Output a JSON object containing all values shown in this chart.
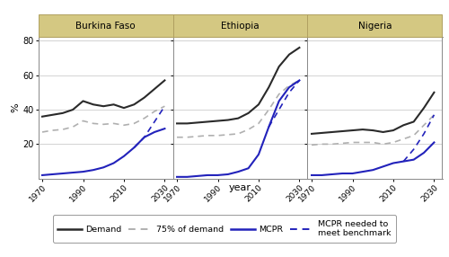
{
  "countries": [
    "Burkina Faso",
    "Ethiopia",
    "Nigeria"
  ],
  "ylabel": "%",
  "xlabel": "year",
  "ylim": [
    0,
    82
  ],
  "yticks": [
    20,
    40,
    60,
    80
  ],
  "xticks": [
    1970,
    1990,
    2010,
    2030
  ],
  "panel_bg": "#ffffff",
  "header_bg": "#d4c882",
  "header_edge": "#b0a060",
  "grid_color": "#cccccc",
  "demand_color": "#2a2a2a",
  "demand75_color": "#b0b0b0",
  "mcpr_color": "#2222bb",
  "mcpr_needed_color": "#2222bb",
  "burkina_faso": {
    "demand_years": [
      1970,
      1975,
      1980,
      1985,
      1990,
      1995,
      2000,
      2005,
      2010,
      2015,
      2020,
      2025,
      2030
    ],
    "demand": [
      36,
      37,
      38,
      40,
      45,
      43,
      42,
      43,
      41,
      43,
      47,
      52,
      57
    ],
    "demand75": [
      27,
      28,
      28.5,
      30,
      33.5,
      32,
      31.5,
      32,
      31,
      32,
      35,
      39,
      42
    ],
    "mcpr_years": [
      1970,
      1975,
      1980,
      1985,
      1990,
      1995,
      2000,
      2005,
      2010,
      2015,
      2020,
      2025,
      2030
    ],
    "mcpr": [
      2,
      2.5,
      3,
      3.5,
      4,
      5,
      6.5,
      9,
      13,
      18,
      24,
      27,
      29
    ],
    "mcpr_needed_years": [
      2015,
      2020,
      2025,
      2030
    ],
    "mcpr_needed": [
      18,
      24,
      33,
      42
    ]
  },
  "ethiopia": {
    "demand_years": [
      1970,
      1975,
      1980,
      1985,
      1990,
      1995,
      2000,
      2005,
      2010,
      2015,
      2020,
      2025,
      2030
    ],
    "demand": [
      32,
      32,
      32.5,
      33,
      33.5,
      34,
      35,
      38,
      43,
      53,
      65,
      72,
      76
    ],
    "demand75": [
      24,
      24,
      24.5,
      25,
      25,
      25.5,
      26,
      28.5,
      32,
      40,
      49,
      54,
      57
    ],
    "mcpr_years": [
      1970,
      1975,
      1980,
      1985,
      1990,
      1995,
      2000,
      2005,
      2010,
      2015,
      2020,
      2025,
      2030
    ],
    "mcpr": [
      1,
      1,
      1.5,
      2,
      2,
      2.5,
      4,
      6,
      14,
      30,
      45,
      53,
      57
    ],
    "mcpr_needed_years": [
      2015,
      2020,
      2025,
      2030
    ],
    "mcpr_needed": [
      30,
      40,
      50,
      57
    ]
  },
  "nigeria": {
    "demand_years": [
      1970,
      1975,
      1980,
      1985,
      1990,
      1995,
      2000,
      2005,
      2010,
      2015,
      2020,
      2025,
      2030
    ],
    "demand": [
      26,
      26.5,
      27,
      27.5,
      28,
      28.5,
      28,
      27,
      28,
      31,
      33,
      41,
      50
    ],
    "demand75": [
      19.5,
      20,
      20,
      20.5,
      21,
      21,
      21,
      20,
      21,
      23,
      25,
      31,
      37
    ],
    "mcpr_years": [
      1970,
      1975,
      1980,
      1985,
      1990,
      1995,
      2000,
      2005,
      2010,
      2015,
      2020,
      2025,
      2030
    ],
    "mcpr": [
      2,
      2,
      2.5,
      3,
      3,
      4,
      5,
      7,
      9,
      10,
      11,
      15,
      21
    ],
    "mcpr_needed_years": [
      2015,
      2020,
      2025,
      2030
    ],
    "mcpr_needed": [
      10,
      17,
      26,
      37
    ]
  },
  "legend_items": [
    {
      "label": "Demand",
      "color": "#2a2a2a",
      "linestyle": "solid",
      "linewidth": 1.8
    },
    {
      "label": "75% of demand",
      "color": "#b0b0b0",
      "linestyle": "dashed",
      "linewidth": 1.4
    },
    {
      "label": "MCPR",
      "color": "#2222bb",
      "linestyle": "solid",
      "linewidth": 1.8
    },
    {
      "label": "MCPR needed to\nmeet benchmark",
      "color": "#2222bb",
      "linestyle": "dashed",
      "linewidth": 1.4
    }
  ]
}
